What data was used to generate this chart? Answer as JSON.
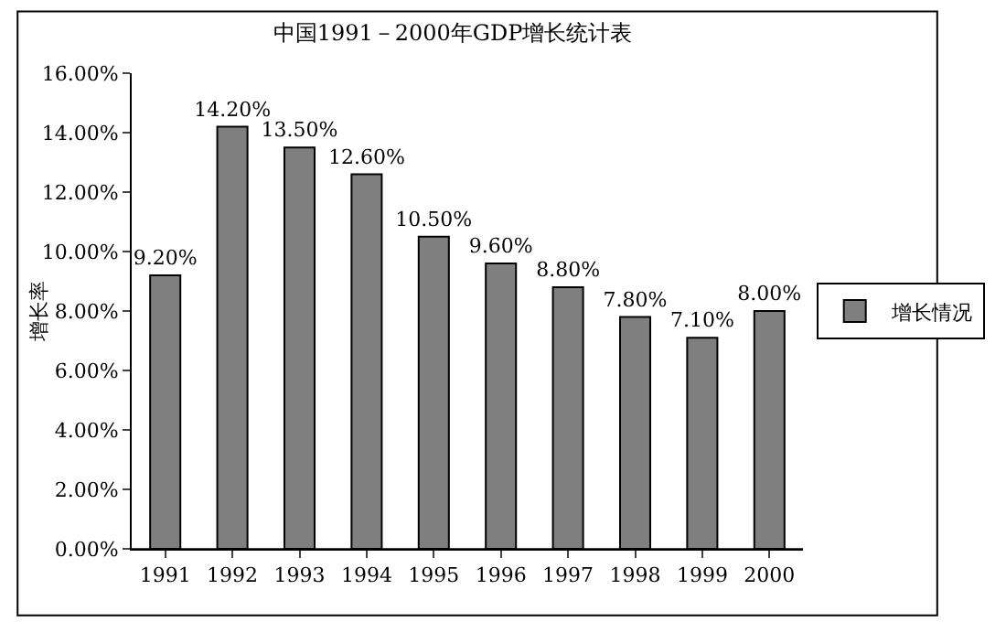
{
  "chart_data": {
    "type": "bar",
    "title": "中国1991－2000年GDP增长统计表",
    "ylabel": "增长率",
    "categories": [
      "1991",
      "1992",
      "1993",
      "1994",
      "1995",
      "1996",
      "1997",
      "1998",
      "1999",
      "2000"
    ],
    "series": [
      {
        "name": "增长情况",
        "color": "#7f7f7f",
        "values": [
          9.2,
          14.2,
          13.5,
          12.6,
          10.5,
          9.6,
          8.8,
          7.8,
          7.1,
          8.0
        ],
        "value_labels": [
          "9.20%",
          "14.20%",
          "13.50%",
          "12.60%",
          "10.50%",
          "9.60%",
          "8.80%",
          "7.80%",
          "7.10%",
          "8.00%"
        ]
      }
    ],
    "ylim": [
      0,
      16
    ],
    "yticks": [
      {
        "value": 0,
        "label": "0.00%"
      },
      {
        "value": 2,
        "label": "2.00%"
      },
      {
        "value": 4,
        "label": "4.00%"
      },
      {
        "value": 6,
        "label": "6.00%"
      },
      {
        "value": 8,
        "label": "8.00%"
      },
      {
        "value": 10,
        "label": "10.00%"
      },
      {
        "value": 12,
        "label": "12.00%"
      },
      {
        "value": 14,
        "label": "14.00%"
      },
      {
        "value": 16,
        "label": "16.00%"
      }
    ],
    "grid": false,
    "legend": "right"
  }
}
